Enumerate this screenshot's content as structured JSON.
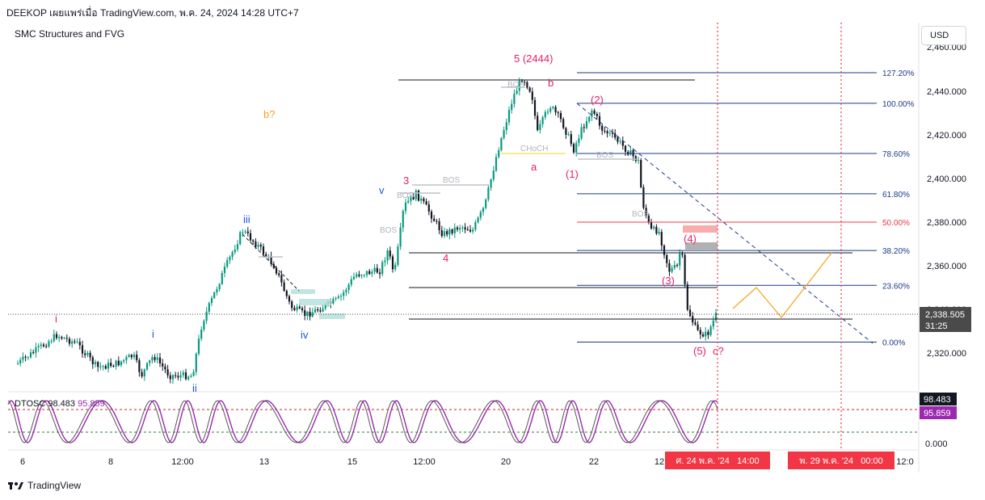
{
  "header": {
    "title": "DEEKOP เผยแพร่เมื่อ TradingView.com, พ.ค. 24, 2024 14:28 UTC+7"
  },
  "indicator": {
    "name": "SMC Structures and FVG"
  },
  "oscillator": {
    "name": "DTOSC",
    "value1": "98.483",
    "value2": "95.859",
    "axis_zero": "0.000"
  },
  "currency_button": {
    "label": "USD"
  },
  "footer": {
    "brand": "TradingView",
    "logo_icon": "tradingview-logo-icon"
  },
  "price_badge": {
    "price": "2,338.505",
    "countdown": "31:25",
    "color": "#4a4a4a"
  },
  "time_badges": [
    {
      "label": "ศ. 24 พ.ค. '24   14:00",
      "color": "#f23645"
    },
    {
      "label": "พ. 29 พ.ค. '24   00:00",
      "color": "#f23645"
    }
  ],
  "chart_data": {
    "type": "candlestick",
    "instrument_hint": "XAUUSD",
    "y_ticks": [
      "2,440.000",
      "2,420.000",
      "2,400.000",
      "2,380.000",
      "2,360.000",
      "2,340.000",
      "2,320.000"
    ],
    "y_tick_values": [
      2440,
      2420,
      2400,
      2380,
      2360,
      2340,
      2320
    ],
    "ylim": [
      2310,
      2455
    ],
    "x_ticks": [
      "6",
      "8",
      "12:00",
      "13",
      "15",
      "12:00",
      "20",
      "22",
      "12",
      "12:0"
    ],
    "fib_levels": [
      {
        "label": "127.20%",
        "price": 2448.5
      },
      {
        "label": "100.00%",
        "price": 2434.5
      },
      {
        "label": "78.60%",
        "price": 2411.5
      },
      {
        "label": "61.80%",
        "price": 2393.0
      },
      {
        "label": "50.00%",
        "price": 2380.0
      },
      {
        "label": "38.20%",
        "price": 2367.0
      },
      {
        "label": "23.60%",
        "price": 2351.0
      },
      {
        "label": "0.00%",
        "price": 2325.0
      }
    ],
    "wave_labels": [
      {
        "text": "5 (2444)",
        "color": "#e91e63"
      },
      {
        "text": "b",
        "color": "#e91e63"
      },
      {
        "text": "a",
        "color": "#e91e63"
      },
      {
        "text": "(2)",
        "color": "#e91e63"
      },
      {
        "text": "(1)",
        "color": "#e91e63"
      },
      {
        "text": "(4)",
        "color": "#e91e63"
      },
      {
        "text": "(3)",
        "color": "#e91e63"
      },
      {
        "text": "(5)",
        "color": "#e91e63"
      },
      {
        "text": "c?",
        "color": "#e91e63"
      },
      {
        "text": "3",
        "color": "#e91e63"
      },
      {
        "text": "4",
        "color": "#e91e63"
      },
      {
        "text": "i",
        "color": "#e91e63"
      },
      {
        "text": "i",
        "color": "#1e53e5"
      },
      {
        "text": "ii",
        "color": "#1e53e5"
      },
      {
        "text": "iii",
        "color": "#1e53e5"
      },
      {
        "text": "iv",
        "color": "#1e53e5"
      },
      {
        "text": "v",
        "color": "#1e53e5"
      },
      {
        "text": "b?",
        "color": "#f7a21b"
      }
    ],
    "structure_labels": [
      "BOS",
      "BOS",
      "BOS",
      "BOS",
      "BOS",
      "BOS",
      "CHoCH"
    ],
    "last_price": 2338.5,
    "colors": {
      "up": "#089981",
      "down": "#131722",
      "fib": "#1e3a8a",
      "fib_50": "#f23645",
      "projection": "#f7a21b"
    }
  }
}
